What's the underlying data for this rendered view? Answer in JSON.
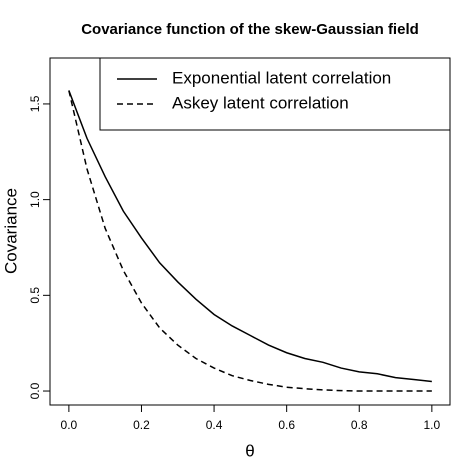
{
  "chart_data": {
    "type": "line",
    "title": "Covariance function of the skew-Gaussian field",
    "x_label": "θ",
    "y_label": "Covariance",
    "x": [
      0,
      0.05,
      0.1,
      0.15,
      0.2,
      0.25,
      0.3,
      0.35,
      0.4,
      0.45,
      0.5,
      0.55,
      0.6,
      0.65,
      0.7,
      0.75,
      0.8,
      0.85,
      0.9,
      0.95,
      1
    ],
    "series": [
      {
        "name": "Exponential latent correlation",
        "color": "#000000",
        "dash": "solid",
        "values": [
          1.57,
          1.32,
          1.12,
          0.94,
          0.8,
          0.67,
          0.57,
          0.48,
          0.4,
          0.34,
          0.29,
          0.24,
          0.2,
          0.17,
          0.15,
          0.12,
          0.1,
          0.09,
          0.07,
          0.06,
          0.05
        ]
      },
      {
        "name": "Askey latent correlation",
        "color": "#000000",
        "dash": "dashed",
        "values": [
          1.57,
          1.16,
          0.85,
          0.63,
          0.46,
          0.33,
          0.24,
          0.17,
          0.12,
          0.08,
          0.055,
          0.035,
          0.02,
          0.012,
          0.006,
          0.002,
          0,
          0,
          0,
          0,
          0
        ]
      }
    ],
    "xlim": [
      -0.052,
      1.05
    ],
    "ylim": [
      -0.073,
      1.74
    ],
    "xticks": [
      {
        "value": 0,
        "label": "0.0"
      },
      0.2,
      0.4,
      0.6,
      0.8,
      {
        "value": 1,
        "label": "1.0"
      }
    ],
    "yticks": [
      {
        "value": 0,
        "label": "0.0"
      },
      0.5,
      {
        "value": 1,
        "label": "1.0"
      },
      1.5
    ],
    "grid": false,
    "legend_position": "top-right"
  }
}
